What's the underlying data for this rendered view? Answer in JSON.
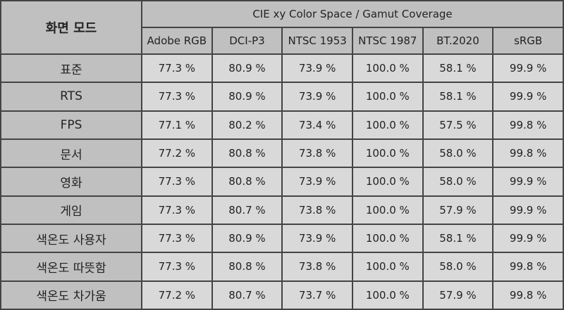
{
  "header": {
    "mode_label": "화면 모드",
    "group_label": "CIE xy Color Space / Gamut Coverage",
    "columns": [
      "Adobe RGB",
      "DCI-P3",
      "NTSC 1953",
      "NTSC 1987",
      "BT.2020",
      "sRGB"
    ]
  },
  "rows": [
    {
      "mode": "표준",
      "values": [
        "77.3 %",
        "80.9 %",
        "73.9 %",
        "100.0 %",
        "58.1 %",
        "99.9 %"
      ]
    },
    {
      "mode": "RTS",
      "values": [
        "77.3 %",
        "80.9 %",
        "73.9 %",
        "100.0 %",
        "58.1 %",
        "99.9 %"
      ]
    },
    {
      "mode": "FPS",
      "values": [
        "77.1 %",
        "80.2 %",
        "73.4 %",
        "100.0 %",
        "57.5 %",
        "99.8 %"
      ]
    },
    {
      "mode": "문서",
      "values": [
        "77.2 %",
        "80.8 %",
        "73.8 %",
        "100.0 %",
        "58.0 %",
        "99.8 %"
      ]
    },
    {
      "mode": "영화",
      "values": [
        "77.3 %",
        "80.8 %",
        "73.9 %",
        "100.0 %",
        "58.0 %",
        "99.9 %"
      ]
    },
    {
      "mode": "게임",
      "values": [
        "77.3 %",
        "80.7 %",
        "73.8 %",
        "100.0 %",
        "57.9 %",
        "99.9 %"
      ]
    },
    {
      "mode": "색온도 사용자",
      "values": [
        "77.3 %",
        "80.9 %",
        "73.9 %",
        "100.0 %",
        "58.1 %",
        "99.9 %"
      ]
    },
    {
      "mode": "색온도 따뜻함",
      "values": [
        "77.3 %",
        "80.8 %",
        "73.8 %",
        "100.0 %",
        "58.0 %",
        "99.8 %"
      ]
    },
    {
      "mode": "색온도 차가움",
      "values": [
        "77.2 %",
        "80.7 %",
        "73.7 %",
        "100.0 %",
        "57.9 %",
        "99.8 %"
      ]
    }
  ]
}
